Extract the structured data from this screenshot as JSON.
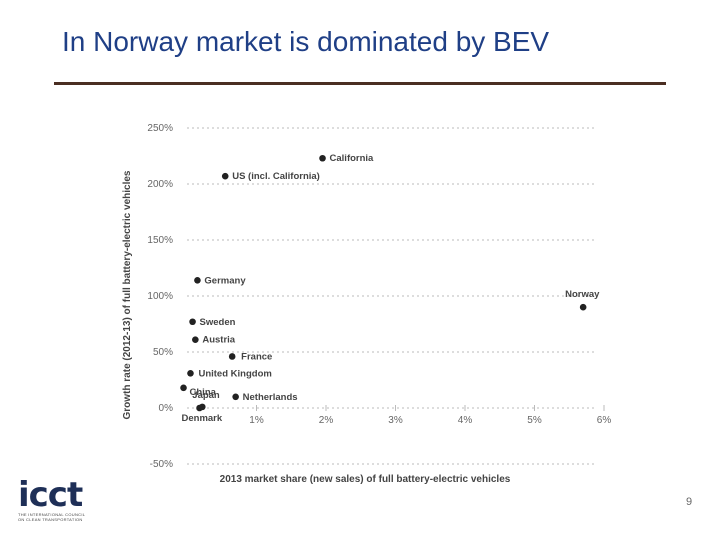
{
  "slide": {
    "title": "In Norway market is dominated by BEV",
    "page_number": "9",
    "logo": {
      "text": "icct",
      "tagline_1": "THE INTERNATIONAL COUNCIL",
      "tagline_2": "ON CLEAN TRANSPORTATION"
    }
  },
  "chart_data": {
    "type": "scatter",
    "xlabel": "2013 market share (new sales) of full battery-electric vehicles",
    "ylabel": "Growth rate (2012-13) of full battery-electric vehicles",
    "xlim": [
      0,
      6
    ],
    "ylim": [
      -50,
      250
    ],
    "x_ticks": [
      "1%",
      "2%",
      "3%",
      "4%",
      "5%",
      "6%"
    ],
    "y_ticks": [
      "250%",
      "200%",
      "150%",
      "100%",
      "50%",
      "0%",
      "-50%"
    ],
    "grid": true,
    "point_color": "#222222",
    "points": [
      {
        "label": "California",
        "x": 1.95,
        "y": 223
      },
      {
        "label": "US (incl. California)",
        "x": 0.55,
        "y": 207
      },
      {
        "label": "Germany",
        "x": 0.15,
        "y": 114
      },
      {
        "label": "Norway",
        "x": 5.7,
        "y": 90
      },
      {
        "label": "Sweden",
        "x": 0.08,
        "y": 77
      },
      {
        "label": "Austria",
        "x": 0.12,
        "y": 61
      },
      {
        "label": "France",
        "x": 0.65,
        "y": 46
      },
      {
        "label": "United Kingdom",
        "x": 0.05,
        "y": 31
      },
      {
        "label": "China",
        "x": -0.05,
        "y": 18
      },
      {
        "label": "Japan",
        "x": 0.22,
        "y": 1
      },
      {
        "label": "Netherlands",
        "x": 0.7,
        "y": 10
      },
      {
        "label": "Denmark",
        "x": 0.18,
        "y": 0
      }
    ]
  }
}
